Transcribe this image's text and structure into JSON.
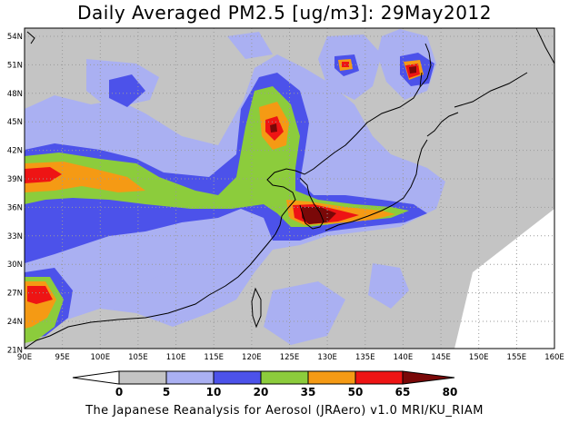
{
  "title": "Daily Averaged PM2.5 [ug/m3]: 29May2012",
  "lat_labels": [
    "54N",
    "51N",
    "48N",
    "45N",
    "42N",
    "39N",
    "36N",
    "33N",
    "30N",
    "27N",
    "24N",
    "21N"
  ],
  "lon_labels": [
    "90E",
    "95E",
    "100E",
    "105E",
    "110E",
    "115E",
    "120E",
    "125E",
    "130E",
    "135E",
    "140E",
    "145E",
    "150E",
    "155E",
    "160E"
  ],
  "colorbar": {
    "levels": [
      "0",
      "5",
      "10",
      "20",
      "35",
      "50",
      "65",
      "80"
    ],
    "colors": [
      "#ffffff",
      "#c4c4c4",
      "#aab0f2",
      "#4c52ea",
      "#8ccc3c",
      "#f59a14",
      "#ee1414",
      "#7a0808"
    ]
  },
  "credit": "The Japanese Reanalysis for Aerosol (JRAero) v1.0 MRI/KU_RIAM"
}
